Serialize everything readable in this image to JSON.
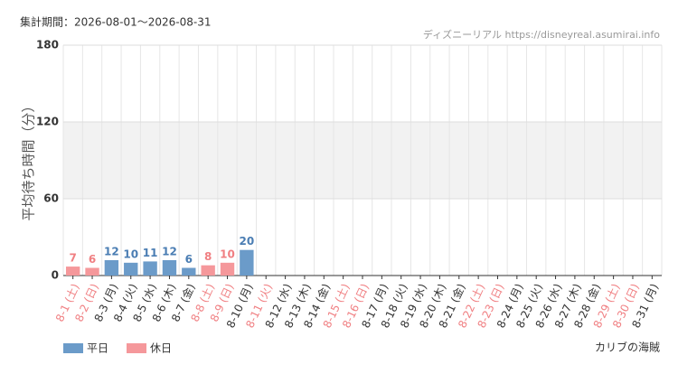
{
  "chart_data": {
    "type": "bar",
    "subtitle": "集計期間：2026-08-01～2026-08-31",
    "source": "ディズニーリアル https://disneyreal.asumirai.info",
    "y_label": "平均待ち時間（分）",
    "attraction": "カリブの海賊",
    "categories": [
      "8-1 (土)",
      "8-2 (日)",
      "8-3 (月)",
      "8-4 (火)",
      "8-5 (水)",
      "8-6 (木)",
      "8-7 (金)",
      "8-8 (土)",
      "8-9 (日)",
      "8-10 (月)",
      "8-11 (火)",
      "8-12 (水)",
      "8-13 (木)",
      "8-14 (金)",
      "8-15 (土)",
      "8-16 (日)",
      "8-17 (月)",
      "8-18 (火)",
      "8-19 (水)",
      "8-20 (木)",
      "8-21 (金)",
      "8-22 (土)",
      "8-23 (日)",
      "8-24 (月)",
      "8-25 (火)",
      "8-26 (水)",
      "8-27 (木)",
      "8-28 (金)",
      "8-29 (土)",
      "8-30 (日)",
      "8-31 (月)"
    ],
    "holiday_flags": [
      true,
      true,
      false,
      false,
      false,
      false,
      false,
      true,
      true,
      false,
      true,
      false,
      false,
      false,
      true,
      true,
      false,
      false,
      false,
      false,
      false,
      true,
      true,
      false,
      false,
      false,
      false,
      false,
      true,
      true,
      false
    ],
    "series": [
      {
        "name": "平日",
        "color": "#6b9bc9",
        "label_color": "#4a7db3",
        "values": [
          null,
          null,
          12,
          10,
          11,
          12,
          6,
          null,
          null,
          20,
          null,
          null,
          null,
          null,
          null,
          null,
          null,
          null,
          null,
          null,
          null,
          null,
          null,
          null,
          null,
          null,
          null,
          null,
          null,
          null,
          null
        ]
      },
      {
        "name": "休日",
        "color": "#f5989b",
        "label_color": "#f07f82",
        "values": [
          7,
          6,
          null,
          null,
          null,
          null,
          null,
          8,
          10,
          null,
          null,
          null,
          null,
          null,
          null,
          null,
          null,
          null,
          null,
          null,
          null,
          null,
          null,
          null,
          null,
          null,
          null,
          null,
          null,
          null,
          null
        ]
      }
    ],
    "ylim": [
      0,
      180
    ],
    "yticks": [
      0,
      60,
      120,
      180
    ],
    "shaded_range": [
      60,
      120
    ],
    "grid": true
  }
}
